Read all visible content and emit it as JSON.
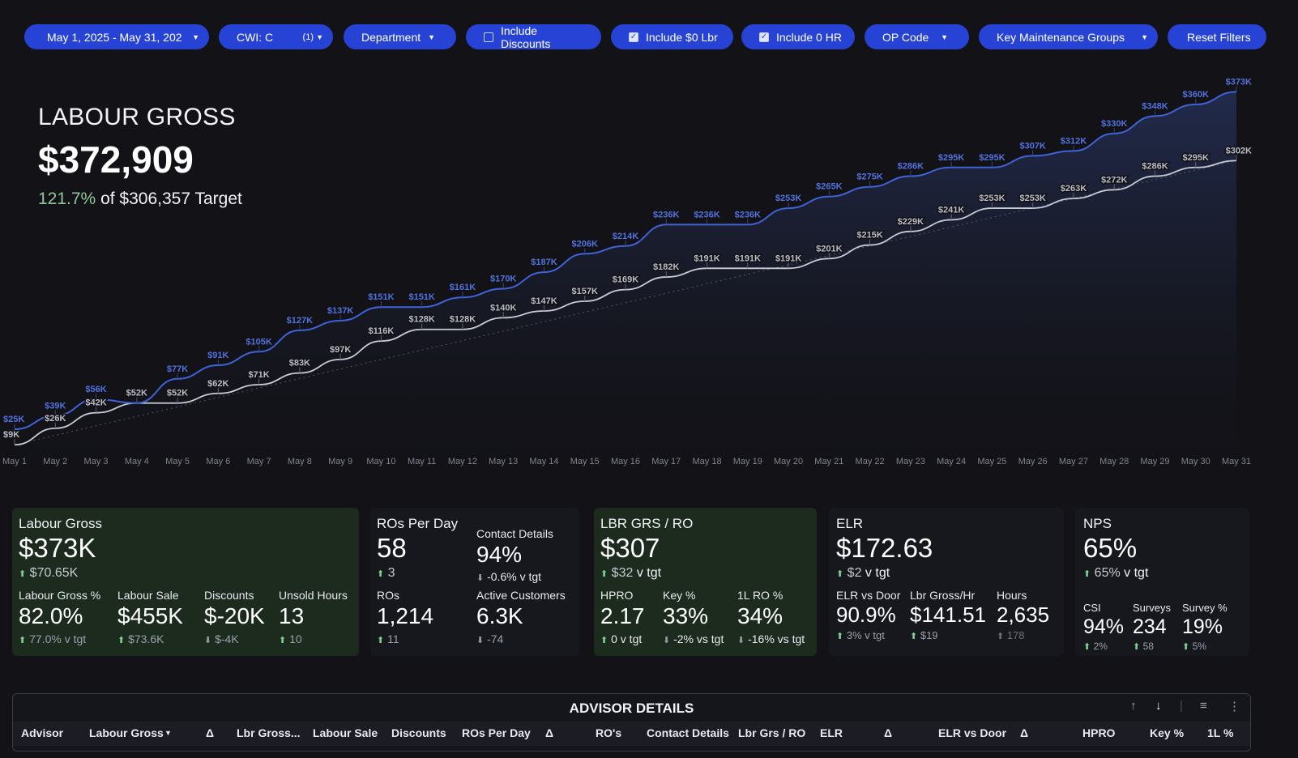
{
  "filters": {
    "date_range": "May 1, 2025 - May 31, 202",
    "cwi": "CWI: C",
    "cwi_count": "(1)",
    "department": "Department",
    "include_discounts": "Include Discounts",
    "include_zero_lbr": "Include $0 Lbr",
    "include_zero_hr": "Include 0 HR",
    "op_code": "OP Code",
    "key_maintenance_groups": "Key Maintenance Groups",
    "reset": "Reset Filters"
  },
  "hero": {
    "title": "LABOUR GROSS",
    "value": "$372,909",
    "pct": "121.7%",
    "target_text": "of $306,357 Target"
  },
  "colors": {
    "actual": "#3f63d8",
    "target": "#c9ccd6",
    "up": "#7ed492",
    "accent": "#2743d6"
  },
  "chart_data": {
    "type": "area",
    "x": [
      "May 1",
      "May 2",
      "May 3",
      "May 4",
      "May 5",
      "May 6",
      "May 7",
      "May 8",
      "May 9",
      "May 10",
      "May 11",
      "May 12",
      "May 13",
      "May 14",
      "May 15",
      "May 16",
      "May 17",
      "May 18",
      "May 19",
      "May 20",
      "May 21",
      "May 22",
      "May 23",
      "May 24",
      "May 25",
      "May 26",
      "May 27",
      "May 28",
      "May 29",
      "May 30",
      "May 31"
    ],
    "series": [
      {
        "values": [
          25,
          39,
          56,
          52,
          77,
          91,
          105,
          127,
          137,
          151,
          151,
          161,
          170,
          187,
          206,
          214,
          236,
          236,
          236,
          253,
          265,
          275,
          286,
          295,
          295,
          307,
          312,
          330,
          348,
          360,
          373
        ],
        "labels": [
          "$25K",
          "$39K",
          "$56K",
          "$52K",
          "$77K",
          "$91K",
          "$105K",
          "$127K",
          "$137K",
          "$151K",
          "$151K",
          "$161K",
          "$170K",
          "$187K",
          "$206K",
          "$214K",
          "$236K",
          "$236K",
          "$236K",
          "$253K",
          "$265K",
          "$275K",
          "$286K",
          "$295K",
          "$295K",
          "$307K",
          "$312K",
          "$330K",
          "$348K",
          "$360K",
          "$373K"
        ]
      },
      {
        "values": [
          9,
          26,
          42,
          52,
          52,
          62,
          71,
          83,
          97,
          116,
          128,
          128,
          140,
          147,
          157,
          169,
          182,
          191,
          191,
          191,
          201,
          215,
          229,
          241,
          253,
          253,
          263,
          272,
          286,
          295,
          302
        ],
        "labels": [
          "$9K",
          "$26K",
          "$42K",
          "$52K",
          "$52K",
          "$62K",
          "$71K",
          "$83K",
          "$97K",
          "$116K",
          "$128K",
          "$128K",
          "$140K",
          "$147K",
          "$157K",
          "$169K",
          "$182K",
          "$191K",
          "$191K",
          "$191K",
          "$201K",
          "$215K",
          "$229K",
          "$241K",
          "$253K",
          "$253K",
          "$263K",
          "$272K",
          "$286K",
          "$295K",
          "$302K"
        ]
      }
    ],
    "ylim": [
      0,
      380
    ],
    "grid": false
  },
  "kpis": {
    "labour": {
      "title": "Labour Gross",
      "value": "$373K",
      "change": "$70.65K",
      "m1_label": "Labour Gross %",
      "m1_value": "82.0%",
      "m1_change": "77.0% v tgt",
      "m2_label": "Labour Sale",
      "m2_value": "$455K",
      "m2_change": "$73.6K",
      "m3_label": "Discounts",
      "m3_value": "$-20K",
      "m3_change": "$-4K",
      "m4_label": "Unsold Hours",
      "m4_value": "13",
      "m4_change": "10"
    },
    "ros": {
      "title": "ROs Per Day",
      "value": "58",
      "change": "3",
      "contact_label": "Contact Details",
      "contact_value": "94%",
      "contact_change": "-0.6% v tgt",
      "ros_label": "ROs",
      "ros_value": "1,214",
      "ros_change": "11",
      "active_label": "Active Customers",
      "active_value": "6.3K",
      "active_change": "-74"
    },
    "lbr_ro": {
      "title": "LBR GRS / RO",
      "value": "$307",
      "change": "$32",
      "change_suffix": "v tgt",
      "hpro_label": "HPRO",
      "hpro_value": "2.17",
      "hpro_change": "0 v tgt",
      "key_label": "Key %",
      "key_value": "33%",
      "key_change": "-2% vs tgt",
      "onel_label": "1L RO %",
      "onel_value": "34%",
      "onel_change": "-16% vs tgt"
    },
    "elr": {
      "title": "ELR",
      "value": "$172.63",
      "change": "$2",
      "change_suffix": "v tgt",
      "door_label": "ELR vs Door",
      "door_value": "90.9%",
      "door_change": "3% v tgt",
      "lgh_label": "Lbr Gross/Hr",
      "lgh_value": "$141.51",
      "lgh_change": "$19",
      "hours_label": "Hours",
      "hours_value": "2,635",
      "hours_change": "178"
    },
    "nps": {
      "title": "NPS",
      "value": "65%",
      "change": "65%",
      "change_suffix": "v tgt",
      "csi_label": "CSI",
      "csi_value": "94%",
      "csi_change": "2%",
      "surveys_label": "Surveys",
      "surveys_value": "234",
      "surveys_change": "58",
      "survey_pct_label": "Survey %",
      "survey_pct_value": "19%",
      "survey_pct_change": "5%"
    }
  },
  "table": {
    "title": "ADVISOR DETAILS",
    "columns": [
      "Advisor",
      "Labour Gross",
      "Δ",
      "Lbr Gross...",
      "Labour Sale",
      "Discounts",
      "ROs Per Day",
      "Δ",
      "RO's",
      "Contact Details",
      "Lbr Grs / RO",
      "ELR",
      "Δ",
      "ELR vs Door",
      "Δ",
      "HPRO",
      "Key %",
      "1L %"
    ]
  }
}
